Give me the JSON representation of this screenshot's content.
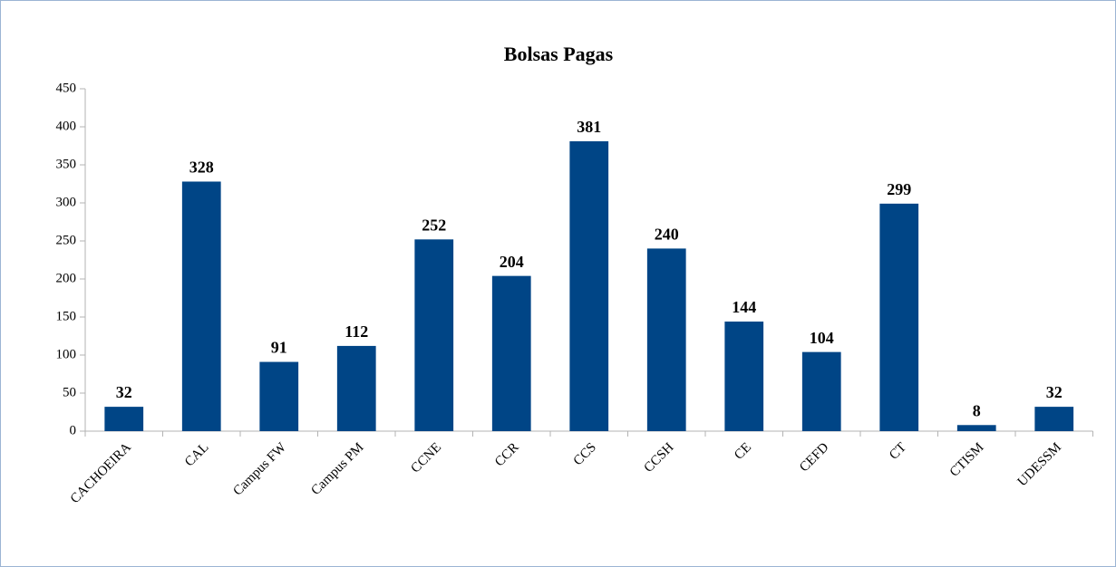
{
  "chart_data": {
    "type": "bar",
    "title": "Bolsas Pagas",
    "categories": [
      "CACHOEIRA",
      "CAL",
      "Campus FW",
      "Campus PM",
      "CCNE",
      "CCR",
      "CCS",
      "CCSH",
      "CE",
      "CEFD",
      "CT",
      "CTISM",
      "UDESSM"
    ],
    "values": [
      32,
      328,
      91,
      112,
      252,
      204,
      381,
      240,
      144,
      104,
      299,
      8,
      32
    ],
    "color": "#004586",
    "ylim": [
      0,
      450
    ],
    "yticks": [
      0,
      50,
      100,
      150,
      200,
      250,
      300,
      350,
      400,
      450
    ],
    "grid": false
  }
}
